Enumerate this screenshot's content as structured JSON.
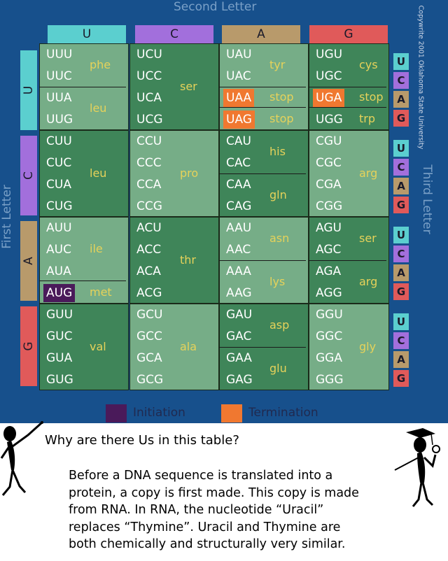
{
  "axis_titles": {
    "second": "Second Letter",
    "first": "First Letter",
    "third": "Third Letter"
  },
  "copyright": "Copywrite 2001 Oklahoma State University",
  "bases": [
    "U",
    "C",
    "A",
    "G"
  ],
  "base_colors": {
    "U": "#5bcfcf",
    "C": "#a26fdc",
    "A": "#b89a6b",
    "G": "#e05a5a"
  },
  "rows": [
    {
      "cells": [
        {
          "codons": [
            "UUU",
            "UUC",
            "UUA",
            "UUG"
          ],
          "groups": [
            {
              "label": "phe",
              "span": [
                0,
                1
              ]
            },
            {
              "label": "leu",
              "span": [
                2,
                3
              ]
            }
          ]
        },
        {
          "codons": [
            "UCU",
            "UCC",
            "UCA",
            "UCG"
          ],
          "groups": [
            {
              "label": "ser",
              "span": [
                0,
                3
              ]
            }
          ]
        },
        {
          "codons": [
            "UAU",
            "UAC",
            "UAA",
            "UAG"
          ],
          "groups": [
            {
              "label": "tyr",
              "span": [
                0,
                1
              ]
            },
            {
              "label": "stop",
              "span": [
                2,
                2
              ]
            },
            {
              "label": "stop",
              "span": [
                3,
                3
              ]
            }
          ]
        },
        {
          "codons": [
            "UGU",
            "UGC",
            "UGA",
            "UGG"
          ],
          "groups": [
            {
              "label": "cys",
              "span": [
                0,
                1
              ]
            },
            {
              "label": "stop",
              "span": [
                2,
                2
              ]
            },
            {
              "label": "trp",
              "span": [
                3,
                3
              ]
            }
          ]
        }
      ]
    },
    {
      "cells": [
        {
          "codons": [
            "CUU",
            "CUC",
            "CUA",
            "CUG"
          ],
          "groups": [
            {
              "label": "leu",
              "span": [
                0,
                3
              ]
            }
          ]
        },
        {
          "codons": [
            "CCU",
            "CCC",
            "CCA",
            "CCG"
          ],
          "groups": [
            {
              "label": "pro",
              "span": [
                0,
                3
              ]
            }
          ]
        },
        {
          "codons": [
            "CAU",
            "CAC",
            "CAA",
            "CAG"
          ],
          "groups": [
            {
              "label": "his",
              "span": [
                0,
                1
              ]
            },
            {
              "label": "gln",
              "span": [
                2,
                3
              ]
            }
          ]
        },
        {
          "codons": [
            "CGU",
            "CGC",
            "CGA",
            "CGG"
          ],
          "groups": [
            {
              "label": "arg",
              "span": [
                0,
                3
              ]
            }
          ]
        }
      ]
    },
    {
      "cells": [
        {
          "codons": [
            "AUU",
            "AUC",
            "AUA",
            "AUG"
          ],
          "groups": [
            {
              "label": "ile",
              "span": [
                0,
                2
              ]
            },
            {
              "label": "met",
              "span": [
                3,
                3
              ]
            }
          ]
        },
        {
          "codons": [
            "ACU",
            "ACC",
            "ACA",
            "ACG"
          ],
          "groups": [
            {
              "label": "thr",
              "span": [
                0,
                3
              ]
            }
          ]
        },
        {
          "codons": [
            "AAU",
            "AAC",
            "AAA",
            "AAG"
          ],
          "groups": [
            {
              "label": "asn",
              "span": [
                0,
                1
              ]
            },
            {
              "label": "lys",
              "span": [
                2,
                3
              ]
            }
          ]
        },
        {
          "codons": [
            "AGU",
            "AGC",
            "AGA",
            "AGG"
          ],
          "groups": [
            {
              "label": "ser",
              "span": [
                0,
                1
              ]
            },
            {
              "label": "arg",
              "span": [
                2,
                3
              ]
            }
          ]
        }
      ]
    },
    {
      "cells": [
        {
          "codons": [
            "GUU",
            "GUC",
            "GUA",
            "GUG"
          ],
          "groups": [
            {
              "label": "val",
              "span": [
                0,
                3
              ]
            }
          ]
        },
        {
          "codons": [
            "GCU",
            "GCC",
            "GCA",
            "GCG"
          ],
          "groups": [
            {
              "label": "ala",
              "span": [
                0,
                3
              ]
            }
          ]
        },
        {
          "codons": [
            "GAU",
            "GAC",
            "GAA",
            "GAG"
          ],
          "groups": [
            {
              "label": "asp",
              "span": [
                0,
                1
              ]
            },
            {
              "label": "glu",
              "span": [
                2,
                3
              ]
            }
          ]
        },
        {
          "codons": [
            "GGU",
            "GGC",
            "GGA",
            "GGG"
          ],
          "groups": [
            {
              "label": "gly",
              "span": [
                0,
                3
              ]
            }
          ]
        }
      ]
    }
  ],
  "highlights": {
    "initiation": [
      "AUG"
    ],
    "termination": [
      "UAA",
      "UAG",
      "UGA"
    ]
  },
  "legend": {
    "initiation_label": "Initiation",
    "initiation_color": "#4a1a5a",
    "termination_label": "Termination",
    "termination_color": "#f07830"
  },
  "dialog": {
    "question": "Why are there Us in this table?",
    "answer_lines": [
      "Before a DNA sequence is translated into a",
      "protein, a copy is first made. This copy is made",
      "from RNA. In RNA, the nucleotide “Uracil”",
      "replaces “Thymine”. Uracil and Thymine are",
      "both chemically and structurally very similar."
    ]
  },
  "figures": {
    "left": "stick-figure-pointing",
    "right": "stick-figure-graduate"
  }
}
